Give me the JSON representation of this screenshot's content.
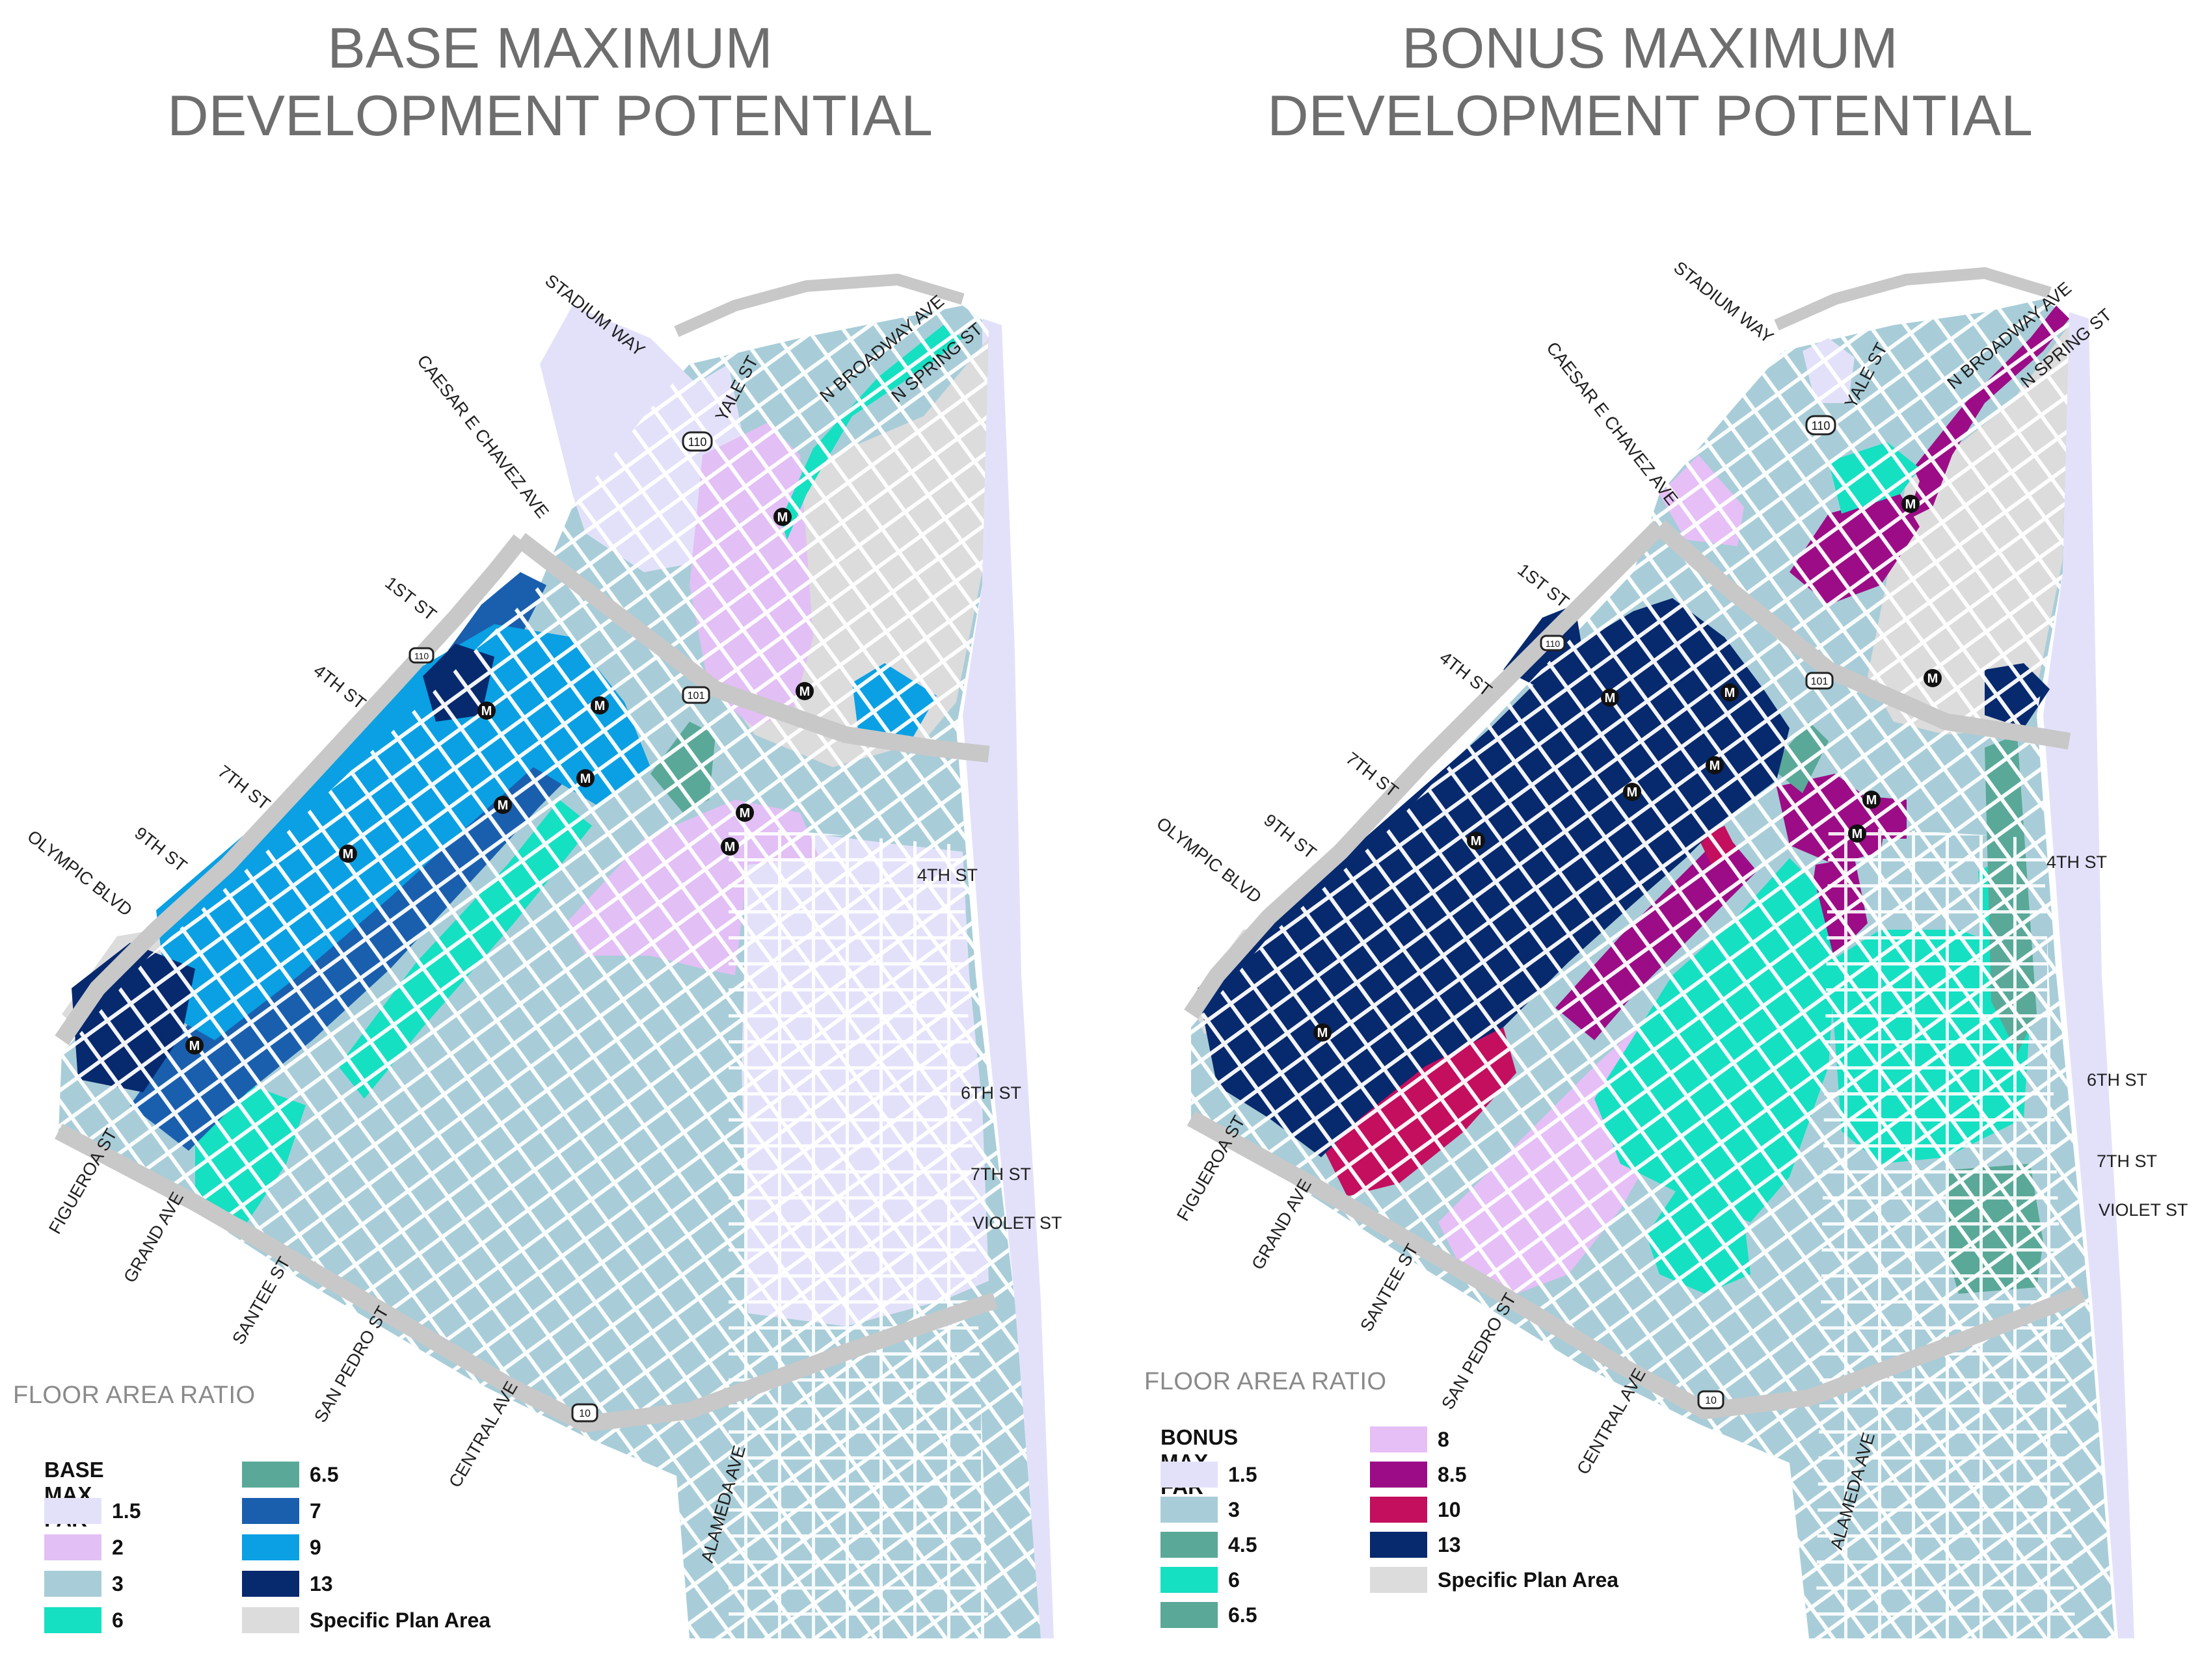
{
  "colors": {
    "far_1_5": "#e3e1fa",
    "far_2": "#e2bff5",
    "far_3": "#a8cdd8",
    "far_4_5": "#5aa898",
    "far_6": "#15e0c2",
    "far_6_5": "#5aa898",
    "far_7": "#1a5fae",
    "far_8": "#e6bff7",
    "far_8_5": "#9c0c86",
    "far_9": "#0aa0e3",
    "far_10": "#c40e5e",
    "far_13": "#07296e",
    "specific_plan": "#dcdcdc",
    "freeway": "#c8c8c8",
    "title_gray": "#6e6e6e"
  },
  "left": {
    "title_line1": "BASE MAXIMUM",
    "title_line2": "DEVELOPMENT POTENTIAL",
    "floor_area_ratio": "FLOOR AREA RATIO",
    "legend": {
      "title": "BASE MAX FAR",
      "items": [
        {
          "label": "1.5",
          "color": "#e3e1fa"
        },
        {
          "label": "2",
          "color": "#e2bff5"
        },
        {
          "label": "3",
          "color": "#a8cdd8"
        },
        {
          "label": "6",
          "color": "#15e0c2"
        },
        {
          "label": "6.5",
          "color": "#5aa898"
        },
        {
          "label": "7",
          "color": "#1a5fae"
        },
        {
          "label": "9",
          "color": "#0aa0e3"
        },
        {
          "label": "13",
          "color": "#07296e"
        },
        {
          "label": "Specific Plan Area",
          "color": "#dcdcdc"
        }
      ]
    },
    "streets": {
      "stadium_way": "STADIUM WAY",
      "yale_st": "YALE ST",
      "n_broadway_ave": "N BROADWAY AVE",
      "n_spring_st": "N SPRING ST",
      "caesar_chavez": "CAESAR E CHAVEZ AVE",
      "first_st": "1ST ST",
      "fourth_st_w": "4TH ST",
      "seventh_st_w": "7TH ST",
      "ninth_st": "9TH ST",
      "olympic_blvd": "OLYMPIC BLVD",
      "fourth_st_e": "4TH ST",
      "sixth_st": "6TH ST",
      "seventh_st_e": "7TH ST",
      "violet_st": "VIOLET ST",
      "figueroa_st": "FIGUEROA ST",
      "grand_ave": "GRAND AVE",
      "santee_st": "SANTEE ST",
      "san_pedro_st": "SAN PEDRO ST",
      "central_ave": "CENTRAL AVE",
      "alameda_ave": "ALAMEDA AVE"
    },
    "shields": {
      "hwy110": "110",
      "hwy101": "101",
      "hwy10": "10"
    },
    "metro_letter": "M"
  },
  "right": {
    "title_line1": "BONUS MAXIMUM",
    "title_line2": "DEVELOPMENT POTENTIAL",
    "floor_area_ratio": "FLOOR AREA RATIO",
    "legend": {
      "title": "BONUS MAX FAR",
      "items": [
        {
          "label": "1.5",
          "color": "#e3e1fa"
        },
        {
          "label": "3",
          "color": "#a8cdd8"
        },
        {
          "label": "4.5",
          "color": "#5aa898"
        },
        {
          "label": "6",
          "color": "#15e0c2"
        },
        {
          "label": "6.5",
          "color": "#5aa898"
        },
        {
          "label": "8",
          "color": "#e6bff7"
        },
        {
          "label": "8.5",
          "color": "#9c0c86"
        },
        {
          "label": "10",
          "color": "#c40e5e"
        },
        {
          "label": "13",
          "color": "#07296e"
        },
        {
          "label": "Specific Plan Area",
          "color": "#dcdcdc"
        }
      ]
    },
    "streets": {
      "stadium_way": "STADIUM WAY",
      "yale_st": "YALE ST",
      "n_broadway_ave": "N BROADWAY AVE",
      "n_spring_st": "N SPRING ST",
      "caesar_chavez": "CAESAR E CHAVEZ AVE",
      "first_st": "1ST ST",
      "fourth_st_w": "4TH ST",
      "seventh_st_w": "7TH ST",
      "ninth_st": "9TH ST",
      "olympic_blvd": "OLYMPIC BLVD",
      "fourth_st_e": "4TH ST",
      "sixth_st": "6TH ST",
      "seventh_st_e": "7TH ST",
      "violet_st": "VIOLET ST",
      "figueroa_st": "FIGUEROA ST",
      "grand_ave": "GRAND AVE",
      "santee_st": "SANTEE ST",
      "san_pedro_st": "SAN PEDRO ST",
      "central_ave": "CENTRAL AVE",
      "alameda_ave": "ALAMEDA AVE"
    },
    "shields": {
      "hwy110": "110",
      "hwy101": "101",
      "hwy10": "10"
    },
    "metro_letter": "M"
  }
}
